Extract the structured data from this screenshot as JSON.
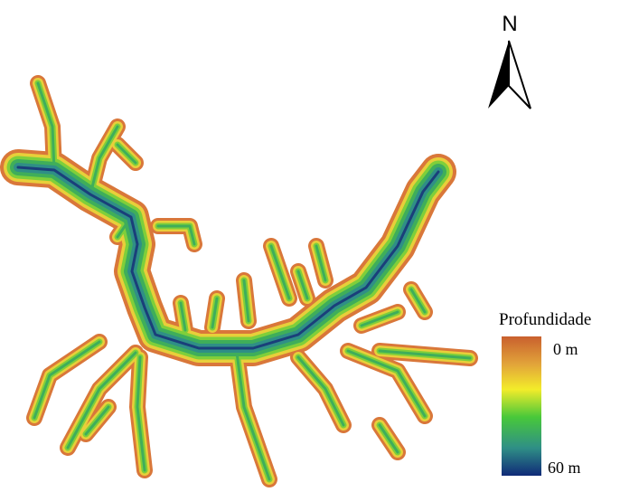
{
  "north_arrow": {
    "label": "N"
  },
  "legend": {
    "title": "Profundidade",
    "labels": [
      "0 m",
      "60 m"
    ]
  }
}
